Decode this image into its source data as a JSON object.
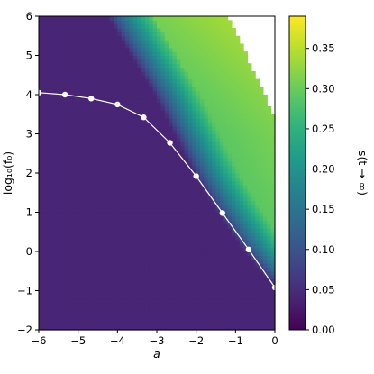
{
  "chart_data": {
    "type": "heatmap",
    "xlabel": "a",
    "ylabel": "log₁₀(f₀)",
    "colorbar_label": "s(t → ∞)",
    "xlim": [
      -6,
      0
    ],
    "ylim": [
      -2,
      6
    ],
    "xticks": [
      "−6",
      "−5",
      "−4",
      "−3",
      "−2",
      "−1",
      "0"
    ],
    "yticks": [
      "−2",
      "−1",
      "0",
      "1",
      "2",
      "3",
      "4",
      "5",
      "6"
    ],
    "colorbar_ticks": [
      "0.00",
      "0.05",
      "0.10",
      "0.15",
      "0.20",
      "0.25",
      "0.30",
      "0.35"
    ],
    "colorbar_range": [
      0,
      0.39
    ],
    "colormap": "viridis",
    "nan_color": "#ffffff",
    "series": [
      {
        "type": "line",
        "color": "#ffffff",
        "x": [
          -6.0,
          -5.333,
          -4.667,
          -4.0,
          -3.333,
          -2.667,
          -2.0,
          -1.333,
          -0.667,
          0.0
        ],
        "y": [
          4.05,
          4.0,
          3.9,
          3.75,
          3.42,
          2.77,
          1.92,
          0.98,
          0.05,
          -0.92
        ]
      }
    ],
    "heatmap_model": {
      "background_value": 0.04,
      "plateau_value": 0.29,
      "high_value": 0.33,
      "front_top": [
        [
          -4.2,
          6
        ],
        [
          -3.6,
          5
        ],
        [
          -3.0,
          4.0
        ],
        [
          -2.5,
          3.0
        ],
        [
          -2.0,
          2.0
        ],
        [
          -1.4,
          1.0
        ],
        [
          -0.8,
          0.1
        ],
        [
          -0.3,
          -0.5
        ],
        [
          0.0,
          -0.8
        ]
      ],
      "blank_region_edge": [
        [
          -1.2,
          6.0
        ],
        [
          -1.1,
          5.8
        ],
        [
          -1.0,
          5.6
        ],
        [
          -0.8,
          5.2
        ],
        [
          -0.5,
          4.5
        ],
        [
          -0.3,
          4.1
        ],
        [
          -0.1,
          3.6
        ],
        [
          0.0,
          3.4
        ]
      ]
    }
  }
}
